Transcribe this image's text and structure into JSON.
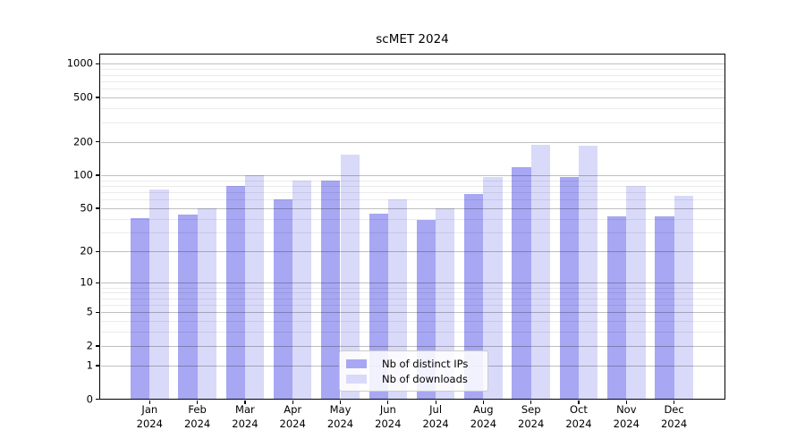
{
  "chart_data": {
    "type": "bar",
    "title": "scMET 2024",
    "categories": [
      "Jan",
      "Feb",
      "Mar",
      "Apr",
      "May",
      "Jun",
      "Jul",
      "Aug",
      "Sep",
      "Oct",
      "Nov",
      "Dec"
    ],
    "year_label": "2024",
    "series": [
      {
        "name": "Nb of distinct IPs",
        "color": "#a7a7f3",
        "values": [
          41,
          44,
          80,
          60,
          90,
          45,
          39,
          67,
          118,
          96,
          42,
          42
        ]
      },
      {
        "name": "Nb of downloads",
        "color": "#d9d9f9",
        "values": [
          74,
          50,
          100,
          90,
          153,
          60,
          50,
          97,
          188,
          185,
          80,
          65
        ]
      }
    ],
    "y_axis": {
      "scale": "log1p",
      "major_ticks": [
        0,
        1,
        2,
        5,
        10,
        20,
        50,
        100,
        200,
        500,
        1000
      ],
      "minor_ticks": [
        3,
        4,
        6,
        7,
        8,
        9,
        30,
        40,
        60,
        70,
        80,
        90,
        300,
        400,
        600,
        700,
        800,
        900
      ],
      "range_max": 1200
    },
    "legend_position": "bottom-center",
    "grid": true,
    "colors": {
      "bar_distinct_ips": "#a7a7f3",
      "bar_downloads": "#d9d9f9",
      "grid_major": "#bfbfbf",
      "grid_minor": "#ebebeb",
      "axis": "#000000",
      "background": "#ffffff"
    }
  }
}
